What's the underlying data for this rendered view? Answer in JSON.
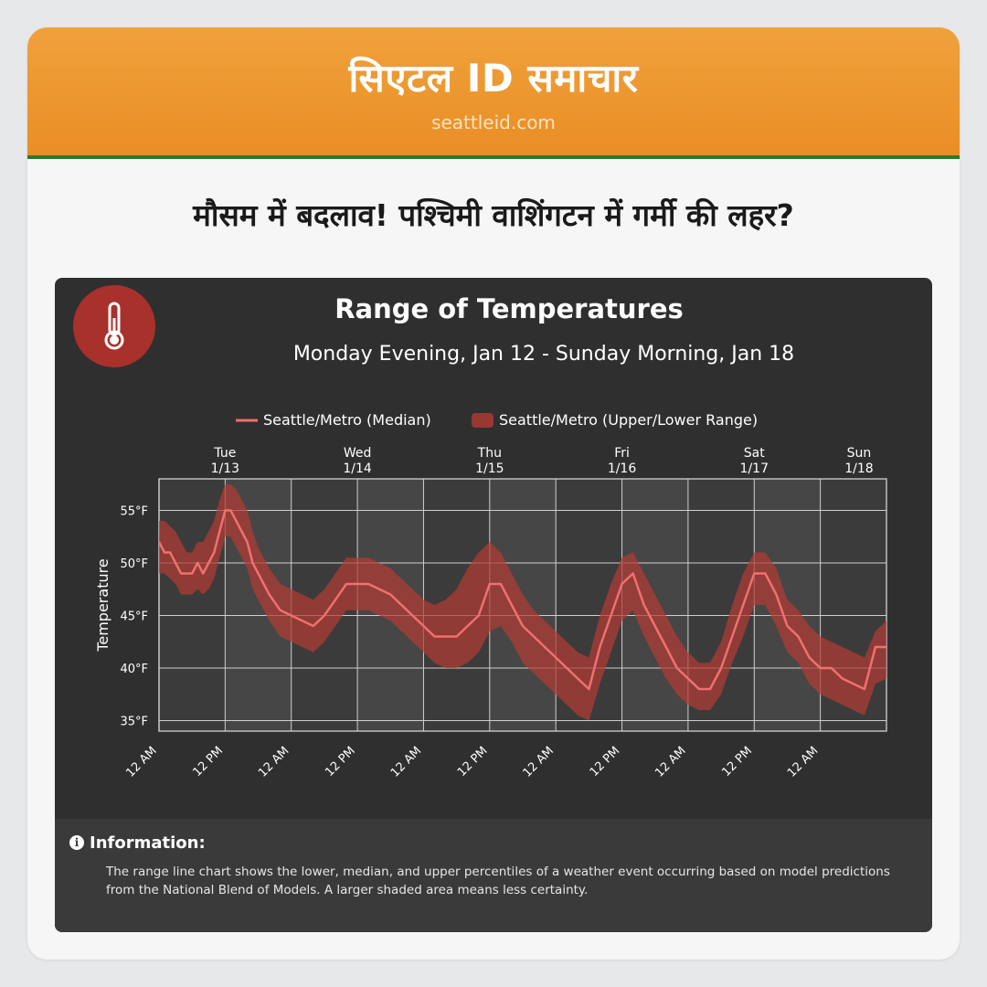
{
  "brand": {
    "name": "सिएटल ID समाचार",
    "url": "seattleid.com"
  },
  "headline": "मौसम में बदलाव! पश्चिमी वाशिंगटन में गर्मी की लहर?",
  "icons": {
    "badge": "thermometer-icon",
    "info": "info-icon"
  },
  "colors": {
    "banner": "#ec942d",
    "banner_border": "#2b7a2a",
    "panel": "#2f2f2f",
    "badge": "#a8312c",
    "median_line": "#f07070",
    "range_band": "#b23b33"
  },
  "info": {
    "title": "Information:",
    "text": "The range line chart shows the lower, median, and upper percentiles of a weather event occurring based on model predictions from the National Blend of Models. A larger shaded area means less certainty."
  },
  "chart_data": {
    "type": "area",
    "title": "Range of Temperatures",
    "subtitle": "Monday Evening, Jan 12 - Sunday Morning, Jan 18",
    "xlabel": "",
    "ylabel": "Temperature",
    "xlim": [
      0,
      132
    ],
    "ylim": [
      34,
      58
    ],
    "y_ticks": [
      {
        "value": 35,
        "label": "35°F"
      },
      {
        "value": 40,
        "label": "40°F"
      },
      {
        "value": 45,
        "label": "45°F"
      },
      {
        "value": 50,
        "label": "50°F"
      },
      {
        "value": 55,
        "label": "55°F"
      }
    ],
    "x_ticks": [
      {
        "x": 0,
        "label": "12 AM"
      },
      {
        "x": 12,
        "label": "12 PM"
      },
      {
        "x": 24,
        "label": "12 AM"
      },
      {
        "x": 36,
        "label": "12 PM"
      },
      {
        "x": 48,
        "label": "12 AM"
      },
      {
        "x": 60,
        "label": "12 PM"
      },
      {
        "x": 72,
        "label": "12 AM"
      },
      {
        "x": 84,
        "label": "12 PM"
      },
      {
        "x": 96,
        "label": "12 AM"
      },
      {
        "x": 108,
        "label": "12 PM"
      },
      {
        "x": 120,
        "label": "12 AM"
      }
    ],
    "day_labels": [
      {
        "x": 12,
        "day": "Tue",
        "date": "1/13"
      },
      {
        "x": 36,
        "day": "Wed",
        "date": "1/14"
      },
      {
        "x": 60,
        "day": "Thu",
        "date": "1/15"
      },
      {
        "x": 84,
        "day": "Fri",
        "date": "1/16"
      },
      {
        "x": 108,
        "day": "Sat",
        "date": "1/17"
      },
      {
        "x": 132,
        "day": "Sun",
        "date": "1/18"
      }
    ],
    "legend": {
      "placement": "top-center"
    },
    "grid": true,
    "series": [
      {
        "name": "Seattle/Metro (Median)",
        "x": [
          0,
          1,
          2,
          3,
          4,
          5,
          6,
          7,
          8,
          9,
          10,
          11,
          12,
          13,
          14,
          15,
          16,
          17,
          18,
          20,
          22,
          24,
          26,
          28,
          30,
          32,
          34,
          36,
          38,
          40,
          42,
          44,
          46,
          48,
          50,
          52,
          54,
          56,
          58,
          60,
          62,
          64,
          66,
          68,
          70,
          72,
          74,
          76,
          78,
          80,
          82,
          84,
          86,
          88,
          90,
          92,
          94,
          96,
          98,
          100,
          102,
          104,
          106,
          108,
          110,
          112,
          114,
          116,
          118,
          120,
          122,
          124,
          126,
          128,
          130,
          132
        ],
        "median": [
          52,
          51,
          51,
          50,
          49,
          49,
          49,
          50,
          49,
          50,
          51,
          53,
          55,
          55,
          54,
          53,
          52,
          50,
          49,
          47,
          45.5,
          45,
          44.5,
          44,
          45,
          46.5,
          48,
          48,
          48,
          47.5,
          47,
          46,
          45,
          44,
          43,
          43,
          43,
          44,
          45,
          48,
          48,
          46,
          44,
          43,
          42,
          41,
          40,
          39,
          38,
          42,
          45,
          48,
          49,
          46,
          44,
          42,
          40,
          39,
          38,
          38,
          40,
          43,
          46,
          49,
          49,
          47,
          44,
          43,
          41,
          40,
          40,
          39,
          38.5,
          38,
          42,
          42
        ],
        "upper": [
          54,
          54,
          53.5,
          53,
          52,
          51,
          51,
          52,
          52,
          53,
          54,
          56,
          57.5,
          57.5,
          57,
          56,
          55,
          53,
          51.5,
          49.5,
          48,
          47.5,
          47,
          46.5,
          47.5,
          49,
          50.5,
          50.5,
          50.5,
          50,
          49.5,
          48.5,
          47.5,
          46.5,
          46,
          46.5,
          47.5,
          49.5,
          51,
          52,
          51,
          49,
          47,
          45.5,
          44.5,
          43.5,
          42.5,
          41.5,
          41,
          45,
          48,
          50.5,
          51,
          49,
          47,
          45,
          43,
          41.5,
          40.5,
          40.5,
          42.5,
          46,
          49,
          51,
          51,
          49.5,
          46.5,
          45.5,
          44,
          43,
          42.5,
          42,
          41.5,
          41,
          43.5,
          44.5
        ],
        "lower": [
          49,
          49,
          48.5,
          48,
          47,
          47,
          47,
          47.5,
          47,
          47.5,
          48.5,
          50.5,
          52.5,
          52.5,
          51.5,
          50.5,
          49.5,
          47.5,
          46.5,
          44.5,
          43,
          42.5,
          42,
          41.5,
          42.5,
          44,
          45.5,
          45.5,
          45.5,
          45,
          44.5,
          43.5,
          42.5,
          41.5,
          40.5,
          40,
          40,
          40.5,
          41.5,
          43.5,
          44,
          42.5,
          40.5,
          39.5,
          38.5,
          37.5,
          36.5,
          35.5,
          35,
          38.5,
          41.5,
          44.5,
          45.5,
          43,
          41,
          39,
          37.5,
          36.5,
          36,
          36,
          37.5,
          40.5,
          43,
          46,
          46,
          44,
          41.5,
          40.5,
          38.5,
          37.5,
          37,
          36.5,
          36,
          35.5,
          38.5,
          39
        ]
      },
      {
        "name": "Seattle/Metro (Upper/Lower Range)"
      }
    ]
  }
}
